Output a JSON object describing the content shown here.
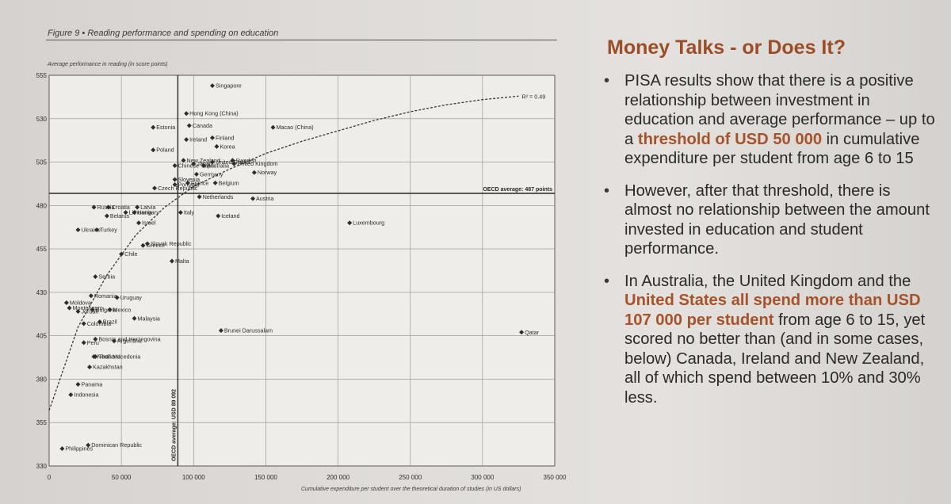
{
  "figure": {
    "caption": "Figure 9 • Reading performance and spending on education"
  },
  "chart_data": {
    "type": "scatter",
    "ylabel": "Average performance in reading (in score points)",
    "xlabel": "Cumulative expenditure per student over the theoretical duration of studies (in US dollars)",
    "xlim": [
      0,
      350000
    ],
    "ylim": [
      330,
      555
    ],
    "x_ticks": [
      0,
      50000,
      100000,
      150000,
      200000,
      250000,
      300000,
      350000
    ],
    "x_tick_labels": [
      "0",
      "50 000",
      "100 000",
      "150 000",
      "200 000",
      "250 000",
      "300 000",
      "350 000"
    ],
    "y_ticks": [
      330,
      355,
      380,
      405,
      430,
      455,
      480,
      505,
      530,
      555
    ],
    "grid": true,
    "r_squared_label": "R² = 0.49",
    "reference_lines": {
      "oecd_avg_performance": {
        "value": 487,
        "label": "OECD average: 487 points"
      },
      "oecd_avg_spending": {
        "value": 89092,
        "label": "OECD average: USD 89 092"
      }
    },
    "trend": [
      [
        0,
        362
      ],
      [
        20000,
        410
      ],
      [
        40000,
        440
      ],
      [
        60000,
        463
      ],
      [
        80000,
        479
      ],
      [
        100000,
        491
      ],
      [
        125000,
        501
      ],
      [
        150000,
        510
      ],
      [
        175000,
        517
      ],
      [
        200000,
        523
      ],
      [
        225000,
        529
      ],
      [
        250000,
        534
      ],
      [
        275000,
        538
      ],
      [
        300000,
        541
      ],
      [
        325000,
        543
      ]
    ],
    "points": [
      {
        "name": "Singapore",
        "x": 113000,
        "y": 549
      },
      {
        "name": "Hong Kong (China)",
        "x": 95000,
        "y": 533
      },
      {
        "name": "Canada",
        "x": 97000,
        "y": 526
      },
      {
        "name": "Estonia",
        "x": 72000,
        "y": 525
      },
      {
        "name": "Macao (China)",
        "x": 155000,
        "y": 525
      },
      {
        "name": "Finland",
        "x": 113000,
        "y": 519
      },
      {
        "name": "Ireland",
        "x": 95000,
        "y": 518
      },
      {
        "name": "Korea",
        "x": 116000,
        "y": 514
      },
      {
        "name": "United Kingdom",
        "x": 128000,
        "y": 504
      },
      {
        "name": "New Zealand",
        "x": 93000,
        "y": 506
      },
      {
        "name": "Australia",
        "x": 107000,
        "y": 503
      },
      {
        "name": "Poland",
        "x": 72000,
        "y": 512
      },
      {
        "name": "Sweden",
        "x": 127000,
        "y": 506
      },
      {
        "name": "Japan",
        "x": 100000,
        "y": 504
      },
      {
        "name": "United States",
        "x": 113000,
        "y": 505
      },
      {
        "name": "Chinese Taipei",
        "x": 87000,
        "y": 503
      },
      {
        "name": "Norway",
        "x": 142000,
        "y": 499
      },
      {
        "name": "Slovenia",
        "x": 87000,
        "y": 495
      },
      {
        "name": "Germany",
        "x": 102000,
        "y": 498
      },
      {
        "name": "Portugal",
        "x": 87000,
        "y": 492
      },
      {
        "name": "Belgium",
        "x": 115000,
        "y": 493
      },
      {
        "name": "Czech Republic",
        "x": 73000,
        "y": 490
      },
      {
        "name": "France",
        "x": 96000,
        "y": 493
      },
      {
        "name": "Netherlands",
        "x": 104000,
        "y": 485
      },
      {
        "name": "Austria",
        "x": 141000,
        "y": 484
      },
      {
        "name": "Croatia",
        "x": 41000,
        "y": 479
      },
      {
        "name": "Latvia",
        "x": 61000,
        "y": 479
      },
      {
        "name": "Russia",
        "x": 31000,
        "y": 479
      },
      {
        "name": "Italy",
        "x": 91000,
        "y": 476
      },
      {
        "name": "Belarus",
        "x": 40000,
        "y": 474
      },
      {
        "name": "Hungary",
        "x": 59000,
        "y": 476
      },
      {
        "name": "Iceland",
        "x": 117000,
        "y": 474
      },
      {
        "name": "Luxembourg",
        "x": 208000,
        "y": 470
      },
      {
        "name": "Lithuania",
        "x": 53000,
        "y": 476
      },
      {
        "name": "Israel",
        "x": 62000,
        "y": 470
      },
      {
        "name": "Ukraine",
        "x": 20000,
        "y": 466
      },
      {
        "name": "Turkey",
        "x": 33000,
        "y": 466
      },
      {
        "name": "Slovak Republic",
        "x": 68000,
        "y": 458
      },
      {
        "name": "Chile",
        "x": 50000,
        "y": 452
      },
      {
        "name": "Greece",
        "x": 65000,
        "y": 457
      },
      {
        "name": "Malta",
        "x": 85000,
        "y": 448
      },
      {
        "name": "Serbia",
        "x": 32000,
        "y": 439
      },
      {
        "name": "Mexico",
        "x": 42000,
        "y": 420
      },
      {
        "name": "Romania",
        "x": 29000,
        "y": 428
      },
      {
        "name": "Moldova",
        "x": 12000,
        "y": 424
      },
      {
        "name": "Uruguay",
        "x": 47000,
        "y": 427
      },
      {
        "name": "Montenegro",
        "x": 14000,
        "y": 421
      },
      {
        "name": "Jordan",
        "x": 20000,
        "y": 419
      },
      {
        "name": "Bulgaria",
        "x": 30000,
        "y": 420
      },
      {
        "name": "Malaysia",
        "x": 59000,
        "y": 415
      },
      {
        "name": "Colombia",
        "x": 24000,
        "y": 412
      },
      {
        "name": "Brazil",
        "x": 35000,
        "y": 413
      },
      {
        "name": "Bosnia and Herzegovina",
        "x": 32000,
        "y": 403
      },
      {
        "name": "Brunei Darussalam",
        "x": 119000,
        "y": 408
      },
      {
        "name": "Qatar",
        "x": 327000,
        "y": 407
      },
      {
        "name": "Argentina",
        "x": 45000,
        "y": 402
      },
      {
        "name": "Peru",
        "x": 24000,
        "y": 401
      },
      {
        "name": "North Macedonia",
        "x": 31000,
        "y": 393
      },
      {
        "name": "Thailand",
        "x": 32000,
        "y": 393
      },
      {
        "name": "Kazakhstan",
        "x": 28000,
        "y": 387
      },
      {
        "name": "Panama",
        "x": 20000,
        "y": 377
      },
      {
        "name": "Indonesia",
        "x": 15000,
        "y": 371
      },
      {
        "name": "Dominican Republic",
        "x": 27000,
        "y": 342
      },
      {
        "name": "Philippines",
        "x": 9000,
        "y": 340
      }
    ]
  },
  "panel": {
    "title": "Money Talks - or Does It?",
    "bullet1": {
      "text_a": "PISA results show that there is a positive relationship between investment in education and average performance – up to a ",
      "highlight": "threshold of USD 50 000",
      "text_b": " in cumulative expenditure per student from age 6 to 15"
    },
    "bullet2": {
      "text": "However, after that threshold, there is almost no relationship between the amount invested in education and student performance."
    },
    "bullet3": {
      "text_a": "In Australia, the United Kingdom and the ",
      "highlight": "United States all spend more than USD 107 000 per student",
      "text_b": " from age 6 to 15, yet scored no better than (and in some cases, below) Canada, Ireland and New Zealand, all of which spend between 10% and 30% less."
    }
  }
}
